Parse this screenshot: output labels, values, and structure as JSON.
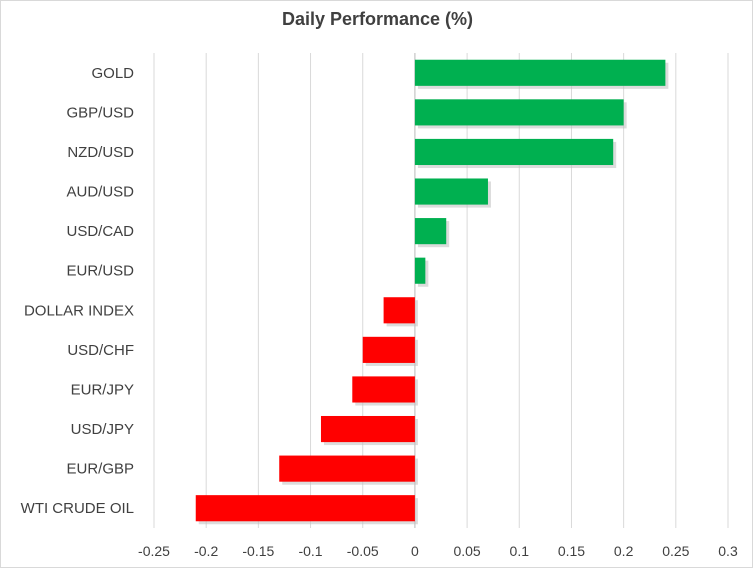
{
  "chart_data": {
    "type": "bar",
    "orientation": "horizontal",
    "title": "Daily Performance (%)",
    "xlabel": "",
    "ylabel": "",
    "categories": [
      "GOLD",
      "GBP/USD",
      "NZD/USD",
      "AUD/USD",
      "USD/CAD",
      "EUR/USD",
      "DOLLAR INDEX",
      "USD/CHF",
      "EUR/JPY",
      "USD/JPY",
      "EUR/GBP",
      "WTI CRUDE OIL"
    ],
    "values": [
      0.24,
      0.2,
      0.19,
      0.07,
      0.03,
      0.01,
      -0.03,
      -0.05,
      -0.06,
      -0.09,
      -0.13,
      -0.21
    ],
    "xlim": [
      -0.25,
      0.3
    ],
    "xticks": [
      -0.25,
      -0.2,
      -0.15,
      -0.1,
      -0.05,
      0,
      0.05,
      0.1,
      0.15,
      0.2,
      0.25,
      0.3
    ],
    "xtick_labels": [
      "-0.25",
      "-0.2",
      "-0.15",
      "-0.1",
      "-0.05",
      "0",
      "0.05",
      "0.1",
      "0.15",
      "0.2",
      "0.25",
      "0.3"
    ],
    "grid": true,
    "legend": "none",
    "colors": {
      "positive": "#00b050",
      "negative": "#ff0000",
      "grid": "#d9d9d9",
      "text": "#404040"
    }
  }
}
